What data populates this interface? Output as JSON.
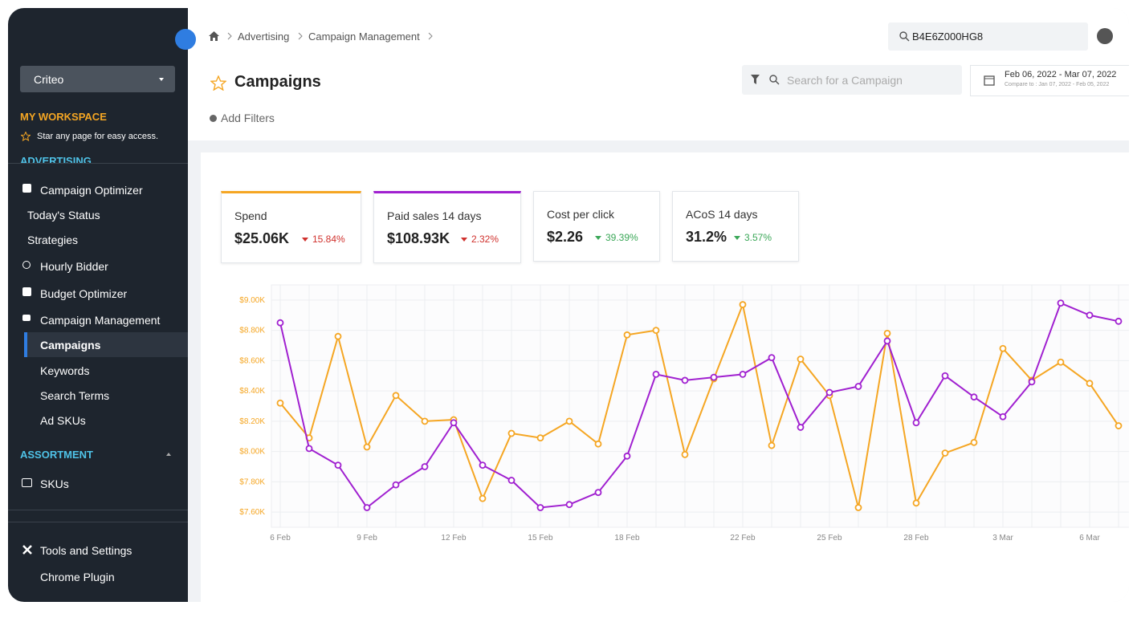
{
  "sidebar": {
    "account": "Criteo",
    "workspace_title": "MY WORKSPACE",
    "workspace_hint": "Star any page for easy access.",
    "section_advertising": "ADVERTISING",
    "items": [
      "Campaign Optimizer",
      "Today's Status",
      "Strategies",
      "Hourly Bidder",
      "Budget Optimizer",
      "Campaign Management",
      "Campaigns",
      "Keywords",
      "Search Terms",
      "Ad SKUs"
    ],
    "section_assortment": "ASSORTMENT",
    "assortment_items": [
      "SKUs"
    ],
    "bottom_items": [
      "Tools and Settings",
      "Chrome Plugin"
    ]
  },
  "header": {
    "breadcrumb": [
      "Advertising",
      "Campaign Management"
    ],
    "global_search": "B4E6Z000HG8",
    "title": "Campaigns",
    "campaign_search_placeholder": "Search for a Campaign",
    "date_range": "Feb 06, 2022 - Mar 07, 2022",
    "compare_range": "Compare to : Jan 07, 2022 - Feb 05, 2022",
    "add_filters": "Add Filters"
  },
  "metrics": [
    {
      "label": "Spend",
      "value": "$25.06K",
      "change": "15.84%"
    },
    {
      "label": "Paid sales 14 days",
      "value": "$108.93K",
      "change": "2.32%"
    },
    {
      "label": "Cost per click",
      "value": "$2.26",
      "change": "39.39%"
    },
    {
      "label": "ACoS 14 days",
      "value": "31.2%",
      "change": "3.57%"
    }
  ],
  "chart_data": {
    "type": "line",
    "categories": [
      "6 Feb",
      null,
      null,
      "9 Feb",
      null,
      null,
      "12 Feb",
      null,
      null,
      "15 Feb",
      null,
      null,
      "18 Feb",
      null,
      null,
      null,
      "22 Feb",
      null,
      null,
      "25 Feb",
      null,
      null,
      "28 Feb",
      null,
      null,
      "3 Mar",
      null,
      null,
      "6 Mar",
      null
    ],
    "series": [
      {
        "color": "#f5a623",
        "values": [
          8320,
          8090,
          8760,
          8030,
          8370,
          8200,
          8210,
          7690,
          8120,
          8090,
          8200,
          8050,
          8770,
          8800,
          7980,
          8480,
          8970,
          8040,
          8610,
          8370,
          7630,
          8780,
          7660,
          7990,
          8060,
          8680,
          8470,
          8590,
          8450,
          8170
        ]
      },
      {
        "color": "#a020d0",
        "values": [
          8850,
          8020,
          7910,
          7630,
          7780,
          7900,
          8190,
          7910,
          7810,
          7630,
          7650,
          7730,
          7970,
          8510,
          8470,
          8490,
          8510,
          8620,
          8160,
          8390,
          8430,
          8730,
          8190,
          8500,
          8360,
          8230,
          8460,
          8980,
          8900,
          8860
        ]
      }
    ],
    "ylim": [
      7500,
      9100
    ],
    "yticks": [
      {
        "value": 7600,
        "label": "$7.60K"
      },
      {
        "value": 7800,
        "label": "$7.80K"
      },
      {
        "value": 8000,
        "label": "$8.00K"
      },
      {
        "value": 8200,
        "label": "$8.20K"
      },
      {
        "value": 8400,
        "label": "$8.40K"
      },
      {
        "value": 8600,
        "label": "$8.60K"
      },
      {
        "value": 8800,
        "label": "$8.80K"
      },
      {
        "value": 9000,
        "label": "$9.00K"
      }
    ],
    "grid": true,
    "tick_color": "#f5a623"
  }
}
